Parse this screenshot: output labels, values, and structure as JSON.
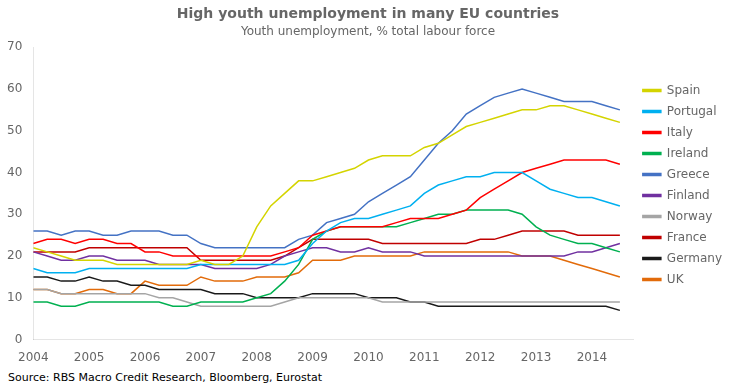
{
  "chart_data": {
    "type": "line",
    "title": "High youth unemployment in many EU countries",
    "subtitle": "Youth unemployment, % total labour force",
    "source": "Source: RBS Macro Credit Research, Bloomberg, Eurostat",
    "x": [
      2004,
      2004.25,
      2004.5,
      2004.75,
      2005,
      2005.25,
      2005.5,
      2005.75,
      2006,
      2006.25,
      2006.5,
      2006.75,
      2007,
      2007.25,
      2007.5,
      2007.75,
      2008,
      2008.25,
      2008.5,
      2008.75,
      2009,
      2009.25,
      2009.5,
      2009.75,
      2010,
      2010.25,
      2010.5,
      2010.75,
      2011,
      2011.25,
      2011.5,
      2011.75,
      2012,
      2012.25,
      2012.5,
      2012.75,
      2013,
      2013.25,
      2013.5,
      2013.75,
      2014,
      2014.25,
      2014.5
    ],
    "series": [
      {
        "name": "Spain",
        "color": "#d4d400",
        "values": [
          22,
          21,
          20,
          19,
          19,
          19,
          18,
          18,
          18,
          18,
          18,
          18,
          19,
          18,
          18,
          20,
          27,
          32,
          35,
          38,
          38,
          39,
          40,
          41,
          43,
          44,
          44,
          44,
          46,
          47,
          49,
          51,
          52,
          53,
          54,
          55,
          55,
          56,
          56,
          55,
          54,
          53,
          52
        ]
      },
      {
        "name": "Portugal",
        "color": "#00b0f0",
        "values": [
          17,
          16,
          16,
          16,
          17,
          17,
          17,
          17,
          17,
          17,
          17,
          17,
          18,
          18,
          18,
          18,
          18,
          18,
          18,
          19,
          23,
          26,
          28,
          29,
          29,
          30,
          31,
          32,
          35,
          37,
          38,
          39,
          39,
          40,
          40,
          40,
          38,
          36,
          35,
          34,
          34,
          33,
          32
        ]
      },
      {
        "name": "Italy",
        "color": "#ff0000",
        "values": [
          23,
          24,
          24,
          23,
          24,
          24,
          23,
          23,
          21,
          21,
          20,
          20,
          20,
          20,
          20,
          20,
          20,
          20,
          21,
          22,
          25,
          26,
          27,
          27,
          27,
          27,
          28,
          29,
          29,
          29,
          30,
          31,
          34,
          36,
          38,
          40,
          41,
          42,
          43,
          43,
          43,
          43,
          42
        ]
      },
      {
        "name": "Ireland",
        "color": "#00b050",
        "values": [
          9,
          9,
          8,
          8,
          9,
          9,
          9,
          9,
          9,
          9,
          8,
          8,
          9,
          9,
          9,
          9,
          10,
          11,
          14,
          18,
          24,
          26,
          27,
          27,
          27,
          27,
          27,
          28,
          29,
          30,
          30,
          31,
          31,
          31,
          31,
          30,
          27,
          25,
          24,
          23,
          23,
          22,
          21
        ]
      },
      {
        "name": "Greece",
        "color": "#4472c4",
        "values": [
          26,
          26,
          25,
          26,
          26,
          25,
          25,
          26,
          26,
          26,
          25,
          25,
          23,
          22,
          22,
          22,
          22,
          22,
          22,
          24,
          25,
          28,
          29,
          30,
          33,
          35,
          37,
          39,
          43,
          47,
          50,
          54,
          56,
          58,
          59,
          60,
          59,
          58,
          57,
          57,
          57,
          56,
          55
        ]
      },
      {
        "name": "Finland",
        "color": "#7030a0",
        "values": [
          21,
          20,
          19,
          19,
          20,
          20,
          19,
          19,
          19,
          18,
          18,
          18,
          18,
          17,
          17,
          17,
          17,
          18,
          20,
          21,
          22,
          22,
          21,
          21,
          22,
          21,
          21,
          21,
          20,
          20,
          20,
          20,
          20,
          20,
          20,
          20,
          20,
          20,
          20,
          21,
          21,
          22,
          23
        ]
      },
      {
        "name": "Norway",
        "color": "#a5a5a5",
        "values": [
          12,
          12,
          11,
          11,
          11,
          11,
          11,
          11,
          11,
          10,
          10,
          9,
          8,
          8,
          8,
          8,
          8,
          8,
          9,
          10,
          10,
          10,
          10,
          10,
          10,
          9,
          9,
          9,
          9,
          9,
          9,
          9,
          9,
          9,
          9,
          9,
          9,
          9,
          9,
          9,
          9,
          9,
          9
        ]
      },
      {
        "name": "France",
        "color": "#c00000",
        "values": [
          21,
          21,
          21,
          21,
          22,
          22,
          22,
          22,
          22,
          22,
          22,
          22,
          19,
          19,
          19,
          19,
          19,
          19,
          20,
          22,
          24,
          24,
          24,
          24,
          24,
          23,
          23,
          23,
          23,
          23,
          23,
          23,
          24,
          24,
          25,
          26,
          26,
          26,
          26,
          25,
          25,
          25,
          25
        ]
      },
      {
        "name": "Germany",
        "color": "#1a1a1a",
        "values": [
          15,
          15,
          14,
          14,
          15,
          14,
          14,
          13,
          13,
          12,
          12,
          12,
          12,
          11,
          11,
          11,
          10,
          10,
          10,
          10,
          11,
          11,
          11,
          11,
          10,
          10,
          10,
          9,
          9,
          8,
          8,
          8,
          8,
          8,
          8,
          8,
          8,
          8,
          8,
          8,
          8,
          8,
          7
        ]
      },
      {
        "name": "UK",
        "color": "#e26b0a",
        "values": [
          12,
          12,
          11,
          11,
          12,
          12,
          11,
          11,
          14,
          13,
          13,
          13,
          15,
          14,
          14,
          14,
          15,
          15,
          15,
          16,
          19,
          19,
          19,
          20,
          20,
          20,
          20,
          20,
          21,
          21,
          21,
          21,
          21,
          21,
          21,
          20,
          20,
          20,
          19,
          18,
          17,
          16,
          15
        ]
      }
    ],
    "xlim": [
      2004,
      2014.75
    ],
    "xticks": [
      2004,
      2005,
      2006,
      2007,
      2008,
      2009,
      2010,
      2011,
      2012,
      2013,
      2014
    ],
    "ylim": [
      0,
      70
    ],
    "yticks": [
      0,
      10,
      20,
      30,
      40,
      50,
      60,
      70
    ],
    "grid": false,
    "legend": "right"
  }
}
